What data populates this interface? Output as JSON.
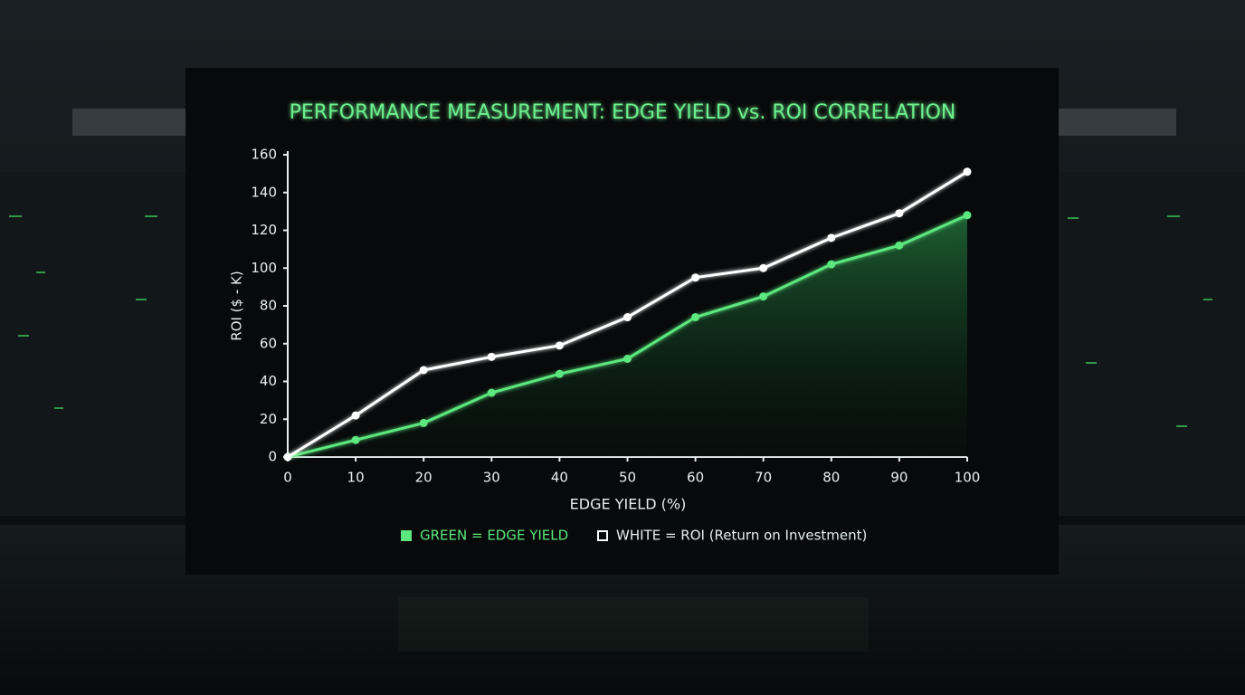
{
  "chart_data": {
    "type": "line",
    "title": "PERFORMANCE MEASUREMENT: EDGE YIELD vs. ROI CORRELATION",
    "x_label": "EDGE YIELD (%)",
    "y_label": "ROI ($ - K)",
    "x": [
      0,
      10,
      20,
      30,
      40,
      50,
      60,
      70,
      80,
      90,
      100
    ],
    "series": [
      {
        "name": "GREEN = EDGE YIELD",
        "color": "#5ce87e",
        "values": [
          0,
          9,
          18,
          34,
          44,
          52,
          74,
          85,
          102,
          112,
          128
        ]
      },
      {
        "name": "WHITE = ROI (Return on Investment)",
        "color": "#ffffff",
        "values": [
          0,
          22,
          46,
          53,
          59,
          74,
          95,
          100,
          116,
          129,
          151
        ]
      }
    ],
    "xlim": [
      0,
      100
    ],
    "xticks": [
      0,
      10,
      20,
      30,
      40,
      50,
      60,
      70,
      80,
      90,
      100
    ],
    "ylim": [
      0,
      160
    ],
    "yticks": [
      0,
      20,
      40,
      60,
      80,
      100,
      120,
      140,
      160
    ]
  }
}
